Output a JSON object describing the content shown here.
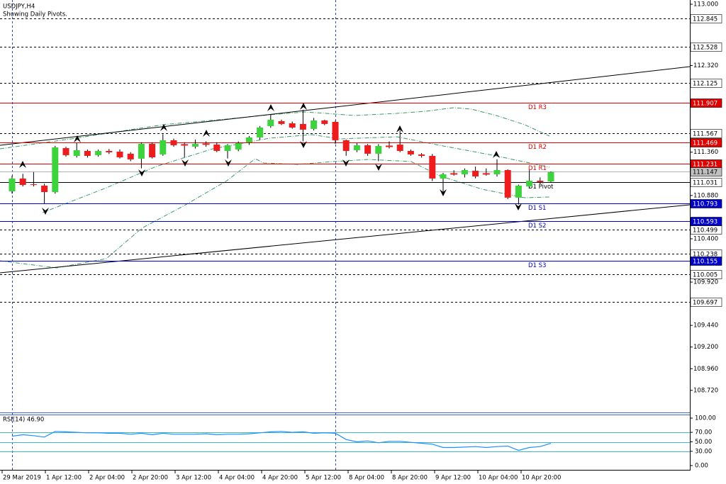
{
  "chart_data": {
    "type": "candlestick",
    "title": "USDJPY,H4",
    "subtitle": "Showing Daily Pivots.",
    "ylim": [
      108.475,
      113.047
    ],
    "yticks": [
      {
        "value": 113.0,
        "label": "113.000"
      },
      {
        "value": 112.32,
        "label": "112.320"
      },
      {
        "value": 111.36,
        "label": "111.360"
      },
      {
        "value": 110.88,
        "label": "110.880"
      },
      {
        "value": 110.4,
        "label": "110.400"
      },
      {
        "value": 109.92,
        "label": "109.920"
      },
      {
        "value": 109.44,
        "label": "109.440"
      },
      {
        "value": 109.2,
        "label": "109.200"
      },
      {
        "value": 108.96,
        "label": "108.960"
      },
      {
        "value": 108.72,
        "label": "108.720"
      }
    ],
    "levels": [
      112.845,
      112.528,
      112.125,
      111.567,
      110.499,
      110.238,
      110.005,
      109.697
    ],
    "pivots": [
      {
        "name": "D1 R3",
        "value": 111.907,
        "color": "#e00000"
      },
      {
        "name": "D1 R2",
        "value": 111.469,
        "color": "#e00000"
      },
      {
        "name": "D1 R1",
        "value": 111.231,
        "color": "#e00000"
      },
      {
        "name": "D1 Pivot",
        "value": 111.031,
        "color": "#000000"
      },
      {
        "name": "D1 S1",
        "value": 110.793,
        "color": "#0000c8"
      },
      {
        "name": "D1 S2",
        "value": 110.593,
        "color": "#0000c8"
      },
      {
        "name": "D1 S3",
        "value": 110.155,
        "color": "#0000c8"
      }
    ],
    "current_price": 111.147,
    "up_color": "#3cd33c",
    "down_color": "#ee1c1c",
    "candles": {
      "open": [
        110.926,
        111.068,
        111.005,
        110.989,
        110.918,
        111.405,
        111.319,
        111.374,
        111.327,
        111.374,
        111.366,
        111.343,
        111.288,
        111.453,
        111.335,
        111.492,
        111.445,
        111.421,
        111.453,
        111.445,
        111.374,
        111.39,
        111.468,
        111.523,
        111.649,
        111.704,
        111.68,
        111.673,
        111.618,
        111.712,
        111.696,
        111.492,
        111.382,
        111.437,
        111.343,
        111.429,
        111.445,
        111.374,
        111.335,
        111.319,
        111.068,
        111.123,
        111.115,
        111.154,
        111.123,
        111.115,
        111.162,
        110.856,
        110.981,
        111.044,
        111.036
      ],
      "high": [
        111.1,
        111.12,
        111.14,
        111.01,
        111.43,
        111.42,
        111.46,
        111.39,
        111.39,
        111.395,
        111.39,
        111.36,
        111.47,
        111.47,
        111.56,
        111.51,
        111.47,
        111.5,
        111.48,
        111.47,
        111.45,
        111.48,
        111.54,
        111.65,
        111.78,
        111.72,
        111.7,
        111.83,
        111.74,
        111.72,
        111.71,
        111.5,
        111.46,
        111.45,
        111.45,
        111.48,
        111.6,
        111.39,
        111.35,
        111.34,
        111.13,
        111.16,
        111.18,
        111.2,
        111.18,
        111.28,
        111.17,
        111.0,
        111.16,
        111.08,
        111.147
      ],
      "low": [
        110.9,
        110.98,
        110.98,
        110.793,
        110.9,
        111.31,
        111.3,
        111.3,
        111.31,
        111.34,
        111.29,
        111.26,
        111.18,
        111.29,
        111.32,
        111.42,
        111.3,
        111.4,
        111.42,
        111.36,
        111.29,
        111.37,
        111.44,
        111.5,
        111.63,
        111.66,
        111.62,
        111.48,
        111.6,
        111.66,
        111.45,
        111.32,
        111.36,
        111.32,
        111.26,
        111.4,
        111.36,
        111.32,
        111.3,
        111.04,
        110.9,
        111.1,
        111.08,
        111.07,
        111.1,
        111.09,
        110.84,
        110.78,
        110.96,
        111.01,
        111.02
      ],
      "close": [
        111.068,
        110.997,
        110.997,
        110.918,
        111.413,
        111.327,
        111.382,
        111.319,
        111.374,
        111.358,
        111.303,
        111.28,
        111.453,
        111.303,
        111.492,
        111.437,
        111.445,
        111.453,
        111.453,
        111.374,
        111.437,
        111.46,
        111.523,
        111.633,
        111.72,
        111.673,
        111.633,
        111.61,
        111.712,
        111.673,
        111.492,
        111.374,
        111.437,
        111.343,
        111.429,
        111.429,
        111.374,
        111.335,
        111.319,
        111.068,
        111.115,
        111.123,
        111.162,
        111.091,
        111.123,
        111.162,
        110.856,
        110.989,
        111.044,
        111.028,
        111.138
      ]
    },
    "time_labels": [
      "29 Mar 2019",
      "1 Apr 12:00",
      "2 Apr 04:00",
      "2 Apr 20:00",
      "3 Apr 12:00",
      "4 Apr 04:00",
      "4 Apr 20:00",
      "5 Apr 12:00",
      "8 Apr 04:00",
      "8 Apr 20:00",
      "9 Apr 12:00",
      "10 Apr 04:00",
      "10 Apr 20:00"
    ],
    "rsi": {
      "label": "RSI(14) 46.90",
      "color": "#1e90ff",
      "level_color": "#40b8c8",
      "ylim": [
        -7.5,
        107.5
      ],
      "yticks": [
        {
          "value": 100,
          "label": "100.00"
        },
        {
          "value": 70,
          "label": "70.00"
        },
        {
          "value": 50,
          "label": "50.00"
        },
        {
          "value": 30,
          "label": "30.00"
        },
        {
          "value": 0,
          "label": "0.00"
        }
      ],
      "levels": [
        70,
        50,
        30
      ],
      "values": [
        62,
        65,
        63,
        60,
        72,
        71,
        70,
        69,
        69,
        68,
        68,
        66,
        68,
        65,
        68,
        66,
        66,
        66,
        67,
        65,
        66,
        66,
        67,
        69,
        71,
        72,
        70,
        71,
        68,
        69,
        68,
        55,
        50,
        52,
        48,
        51,
        51,
        49,
        47,
        45,
        38,
        38,
        39,
        40,
        38,
        40,
        41,
        32,
        38,
        40,
        46.9
      ]
    }
  }
}
